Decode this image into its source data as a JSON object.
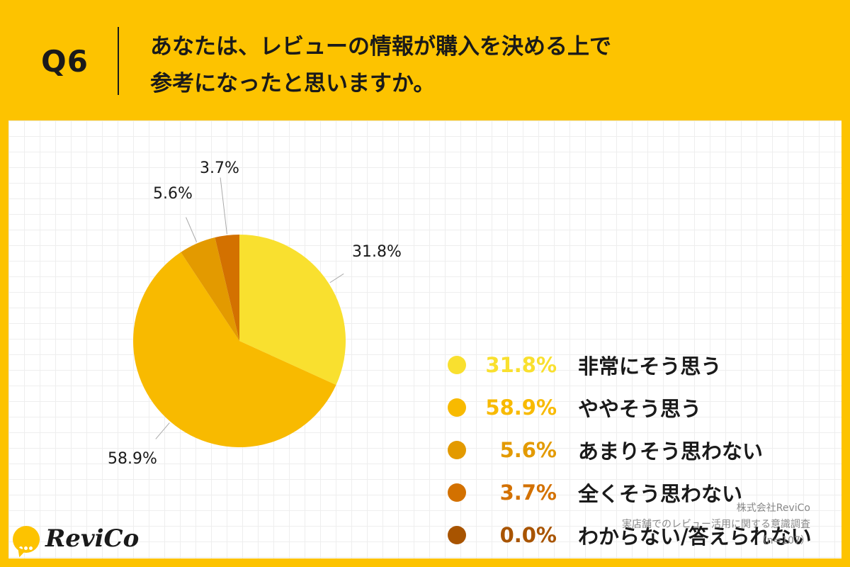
{
  "header": {
    "qnum": "Q6",
    "question_line1": "あなたは、レビューの情報が購入を決める上で",
    "question_line2": "参考になったと思いますか。"
  },
  "chart_data": {
    "type": "pie",
    "start": "12 o'clock, clockwise",
    "slices": [
      {
        "label": "非常にそう思う",
        "value": 31.8,
        "display": "31.8%",
        "color": "#F9E02F"
      },
      {
        "label": "ややそう思う",
        "value": 58.9,
        "display": "58.9%",
        "color": "#F8BA00"
      },
      {
        "label": "あまりそう思わない",
        "value": 5.6,
        "display": "5.6%",
        "color": "#E39A00"
      },
      {
        "label": "全くそう思わない",
        "value": 3.7,
        "display": "3.7%",
        "color": "#D37100"
      },
      {
        "label": "わからない/答えられない",
        "value": 0.0,
        "display": "0.0%",
        "color": "#A85400"
      }
    ]
  },
  "source": {
    "line1": "株式会社ReviCo",
    "line2": "実店舗でのレビュー活用に関する意識調査",
    "line3": "（n=107）"
  },
  "logo": {
    "text": "ReviCo"
  }
}
